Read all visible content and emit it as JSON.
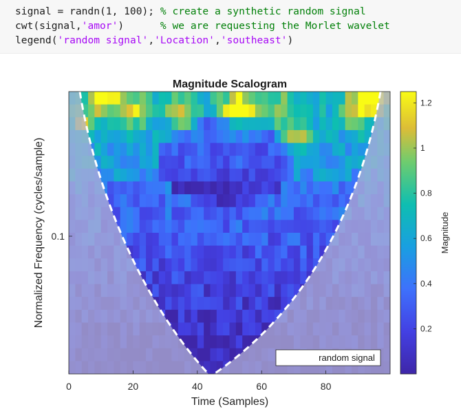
{
  "code": {
    "lines": [
      [
        {
          "t": "signal = randn(1, 100); ",
          "k": "plain"
        },
        {
          "t": "% create a synthetic random signal",
          "k": "com"
        }
      ],
      [
        {
          "t": "cwt(signal,",
          "k": "plain"
        },
        {
          "t": "'amor'",
          "k": "str"
        },
        {
          "t": ")      ",
          "k": "plain"
        },
        {
          "t": "% we are requesting the Morlet wavelet",
          "k": "com"
        }
      ],
      [
        {
          "t": "legend(",
          "k": "plain"
        },
        {
          "t": "'random signal'",
          "k": "str"
        },
        {
          "t": ",",
          "k": "plain"
        },
        {
          "t": "'Location'",
          "k": "str"
        },
        {
          "t": ",",
          "k": "plain"
        },
        {
          "t": "'southeast'",
          "k": "str"
        },
        {
          "t": ")",
          "k": "plain"
        }
      ]
    ]
  },
  "chart_data": {
    "type": "heatmap",
    "title": "Magnitude Scalogram",
    "xlabel": "Time (Samples)",
    "ylabel": "Normalized Frequency  (cycles/sample)",
    "xlim": [
      0,
      100
    ],
    "x_ticks": [
      0,
      20,
      40,
      60,
      80
    ],
    "y_ticks": [
      {
        "label": "0.1",
        "value": 0.1
      }
    ],
    "colorbar": {
      "label": "Magnitude",
      "range": [
        0,
        1.25
      ],
      "ticks": [
        0.2,
        0.4,
        0.6,
        0.8,
        1,
        1.2
      ],
      "tick_labels": [
        "0.2",
        "0.4",
        "0.6",
        "0.8",
        "1",
        "1.2"
      ],
      "colormap": "parula"
    },
    "legend": {
      "entries": [
        "random signal"
      ],
      "location": "southeast"
    },
    "cone_of_influence": "white dashed line",
    "colors": {
      "coi_line": "#ffffff",
      "shade": "#b4b4d2"
    }
  }
}
